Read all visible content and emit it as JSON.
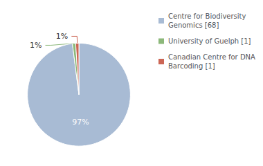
{
  "chart_data": {
    "type": "pie",
    "categories": [
      "Centre for Biodiversity\nGenomics [68]",
      "University of Guelph [1]",
      "Canadian Centre for DNA\nBarcoding [1]"
    ],
    "values": [
      97,
      1,
      1
    ],
    "value_labels": [
      "97%",
      "1%",
      "1%"
    ],
    "colors": [
      "#a8bbd4",
      "#8cb87a",
      "#cc6655"
    ],
    "data_labels": true,
    "legend": "right"
  }
}
